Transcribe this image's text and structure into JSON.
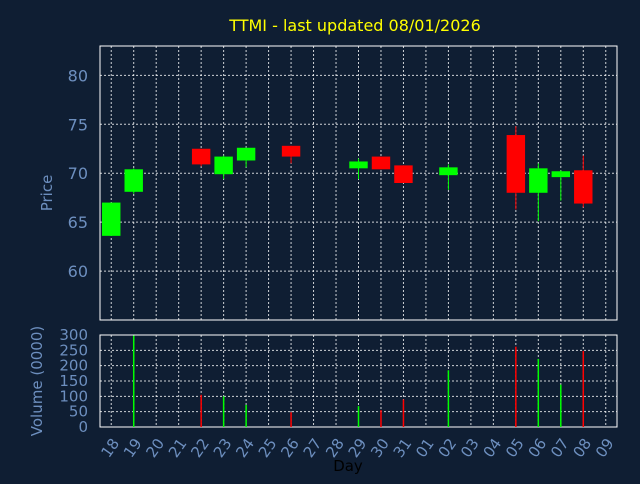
{
  "title": "TTMI - last updated 08/01/2026",
  "colors": {
    "background": "#0f1e33",
    "plot_border": "#ffffff",
    "grid": "#ffffff",
    "title": "#ffff00",
    "axis_text": "#6d8fbf",
    "day_label": "#000000",
    "up": "#00ff00",
    "down": "#ff0000"
  },
  "chart_data": [
    {
      "type": "candlestick",
      "ylabel": "Price",
      "ylim": [
        55,
        83
      ],
      "yticks": [
        60,
        65,
        70,
        75,
        80
      ],
      "grid": true,
      "categories": [
        "18",
        "19",
        "20",
        "21",
        "22",
        "23",
        "24",
        "25",
        "26",
        "27",
        "28",
        "29",
        "30",
        "31",
        "01",
        "02",
        "03",
        "04",
        "05",
        "06",
        "07",
        "08",
        "09"
      ],
      "candles": [
        {
          "x": "18",
          "open": 63.6,
          "close": 67.0,
          "high": 67.0,
          "low": 63.6
        },
        {
          "x": "19",
          "open": 68.1,
          "close": 70.4,
          "high": 70.5,
          "low": 67.9
        },
        {
          "x": "22",
          "open": 72.5,
          "close": 70.9,
          "high": 72.5,
          "low": 70.7
        },
        {
          "x": "23",
          "open": 69.9,
          "close": 71.7,
          "high": 71.8,
          "low": 69.4
        },
        {
          "x": "24",
          "open": 71.3,
          "close": 72.6,
          "high": 72.6,
          "low": 70.6
        },
        {
          "x": "26",
          "open": 72.8,
          "close": 71.7,
          "high": 72.8,
          "low": 71.0
        },
        {
          "x": "29",
          "open": 70.5,
          "close": 71.2,
          "high": 71.5,
          "low": 69.4
        },
        {
          "x": "30",
          "open": 71.7,
          "close": 70.4,
          "high": 71.7,
          "low": 70.4
        },
        {
          "x": "31",
          "open": 70.8,
          "close": 69.0,
          "high": 70.8,
          "low": 69.0
        },
        {
          "x": "02",
          "open": 69.8,
          "close": 70.6,
          "high": 70.9,
          "low": 68.3
        },
        {
          "x": "05",
          "open": 73.9,
          "close": 68.0,
          "high": 74.8,
          "low": 66.3
        },
        {
          "x": "06",
          "open": 68.0,
          "close": 70.5,
          "high": 71.0,
          "low": 65.1
        },
        {
          "x": "07",
          "open": 69.6,
          "close": 70.2,
          "high": 70.3,
          "low": 67.2
        },
        {
          "x": "08",
          "open": 70.3,
          "close": 66.9,
          "high": 71.8,
          "low": 66.5
        }
      ]
    },
    {
      "type": "bar",
      "xlabel": "Day",
      "ylabel": "Volume (0000)",
      "ylim": [
        0,
        300
      ],
      "yticks": [
        0,
        50,
        100,
        150,
        200,
        250,
        300
      ],
      "grid": true,
      "bars": [
        {
          "x": "19",
          "value": 298,
          "direction": "up"
        },
        {
          "x": "22",
          "value": 105,
          "direction": "down"
        },
        {
          "x": "23",
          "value": 100,
          "direction": "up"
        },
        {
          "x": "24",
          "value": 72,
          "direction": "up"
        },
        {
          "x": "26",
          "value": 48,
          "direction": "down"
        },
        {
          "x": "29",
          "value": 68,
          "direction": "up"
        },
        {
          "x": "30",
          "value": 55,
          "direction": "down"
        },
        {
          "x": "31",
          "value": 90,
          "direction": "down"
        },
        {
          "x": "02",
          "value": 185,
          "direction": "up"
        },
        {
          "x": "05",
          "value": 262,
          "direction": "down"
        },
        {
          "x": "06",
          "value": 222,
          "direction": "up"
        },
        {
          "x": "07",
          "value": 138,
          "direction": "up"
        },
        {
          "x": "08",
          "value": 248,
          "direction": "down"
        }
      ]
    }
  ]
}
